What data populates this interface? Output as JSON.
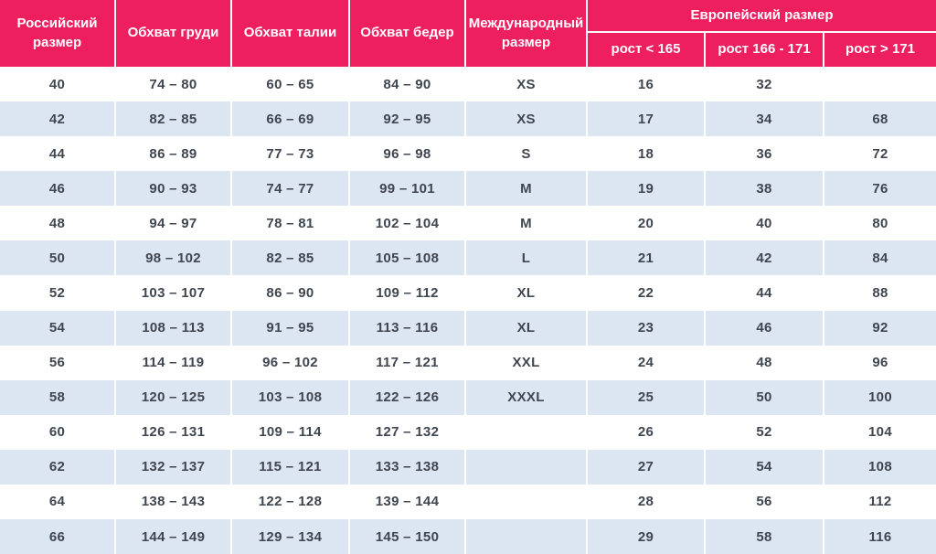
{
  "theme": {
    "header_bg": "#ee1f5f",
    "header_text": "#ffffff",
    "row_bg": "#ffffff",
    "row_alt_bg": "#dce5f2",
    "text_color": "#3f4650"
  },
  "table": {
    "headers": {
      "russian_size": "Российский размер",
      "chest": "Обхват груди",
      "waist": "Обхват талии",
      "hips": "Обхват бедер",
      "international": "Международный размер",
      "european": {
        "title": "Европейский размер",
        "height_lt_165": "рост < 165",
        "height_166_171": "рост 166 - 171",
        "height_gt_171": "рост > 171"
      }
    },
    "rows": [
      [
        "40",
        "74 – 80",
        "60 – 65",
        "84 – 90",
        "XS",
        "16",
        "32",
        ""
      ],
      [
        "42",
        "82 – 85",
        "66 – 69",
        "92 – 95",
        "XS",
        "17",
        "34",
        "68"
      ],
      [
        "44",
        "86 – 89",
        "77 – 73",
        "96 – 98",
        "S",
        "18",
        "36",
        "72"
      ],
      [
        "46",
        "90 – 93",
        "74 – 77",
        "99 – 101",
        "M",
        "19",
        "38",
        "76"
      ],
      [
        "48",
        "94 – 97",
        "78 – 81",
        "102 – 104",
        "M",
        "20",
        "40",
        "80"
      ],
      [
        "50",
        "98 – 102",
        "82 – 85",
        "105 – 108",
        "L",
        "21",
        "42",
        "84"
      ],
      [
        "52",
        "103 – 107",
        "86 – 90",
        "109 – 112",
        "XL",
        "22",
        "44",
        "88"
      ],
      [
        "54",
        "108 – 113",
        "91 – 95",
        "113 – 116",
        "XL",
        "23",
        "46",
        "92"
      ],
      [
        "56",
        "114 – 119",
        "96 – 102",
        "117 – 121",
        "XXL",
        "24",
        "48",
        "96"
      ],
      [
        "58",
        "120 – 125",
        "103 – 108",
        "122 – 126",
        "XXXL",
        "25",
        "50",
        "100"
      ],
      [
        "60",
        "126 – 131",
        "109 – 114",
        "127 – 132",
        "",
        "26",
        "52",
        "104"
      ],
      [
        "62",
        "132 – 137",
        "115 – 121",
        "133 – 138",
        "",
        "27",
        "54",
        "108"
      ],
      [
        "64",
        "138 – 143",
        "122 – 128",
        "139 – 144",
        "",
        "28",
        "56",
        "112"
      ],
      [
        "66",
        "144 – 149",
        "129 – 134",
        "145 – 150",
        "",
        "29",
        "58",
        "116"
      ]
    ]
  },
  "chart_data": {
    "type": "table",
    "title": "Таблица размеров (Российский / Международный / Европейский размер)",
    "columns": [
      "Российский размер",
      "Обхват груди",
      "Обхват талии",
      "Обхват бедер",
      "Международный размер",
      "Европейский размер: рост < 165",
      "Европейский размер: рост 166 - 171",
      "Европейский размер: рост > 171"
    ],
    "rows": [
      [
        "40",
        "74 – 80",
        "60 – 65",
        "84 – 90",
        "XS",
        "16",
        "32",
        ""
      ],
      [
        "42",
        "82 – 85",
        "66 – 69",
        "92 – 95",
        "XS",
        "17",
        "34",
        "68"
      ],
      [
        "44",
        "86 – 89",
        "77 – 73",
        "96 – 98",
        "S",
        "18",
        "36",
        "72"
      ],
      [
        "46",
        "90 – 93",
        "74 – 77",
        "99 – 101",
        "M",
        "19",
        "38",
        "76"
      ],
      [
        "48",
        "94 – 97",
        "78 – 81",
        "102 – 104",
        "M",
        "20",
        "40",
        "80"
      ],
      [
        "50",
        "98 – 102",
        "82 – 85",
        "105 – 108",
        "L",
        "21",
        "42",
        "84"
      ],
      [
        "52",
        "103 – 107",
        "86 – 90",
        "109 – 112",
        "XL",
        "22",
        "44",
        "88"
      ],
      [
        "54",
        "108 – 113",
        "91 – 95",
        "113 – 116",
        "XL",
        "23",
        "46",
        "92"
      ],
      [
        "56",
        "114 – 119",
        "96 – 102",
        "117 – 121",
        "XXL",
        "24",
        "48",
        "96"
      ],
      [
        "58",
        "120 – 125",
        "103 – 108",
        "122 – 126",
        "XXXL",
        "25",
        "50",
        "100"
      ],
      [
        "60",
        "126 – 131",
        "109 – 114",
        "127 – 132",
        "",
        "26",
        "52",
        "104"
      ],
      [
        "62",
        "132 – 137",
        "115 – 121",
        "133 – 138",
        "",
        "27",
        "54",
        "108"
      ],
      [
        "64",
        "138 – 143",
        "122 – 128",
        "139 – 144",
        "",
        "28",
        "56",
        "112"
      ],
      [
        "66",
        "144 – 149",
        "129 – 134",
        "145 – 150",
        "",
        "29",
        "58",
        "116"
      ]
    ]
  }
}
